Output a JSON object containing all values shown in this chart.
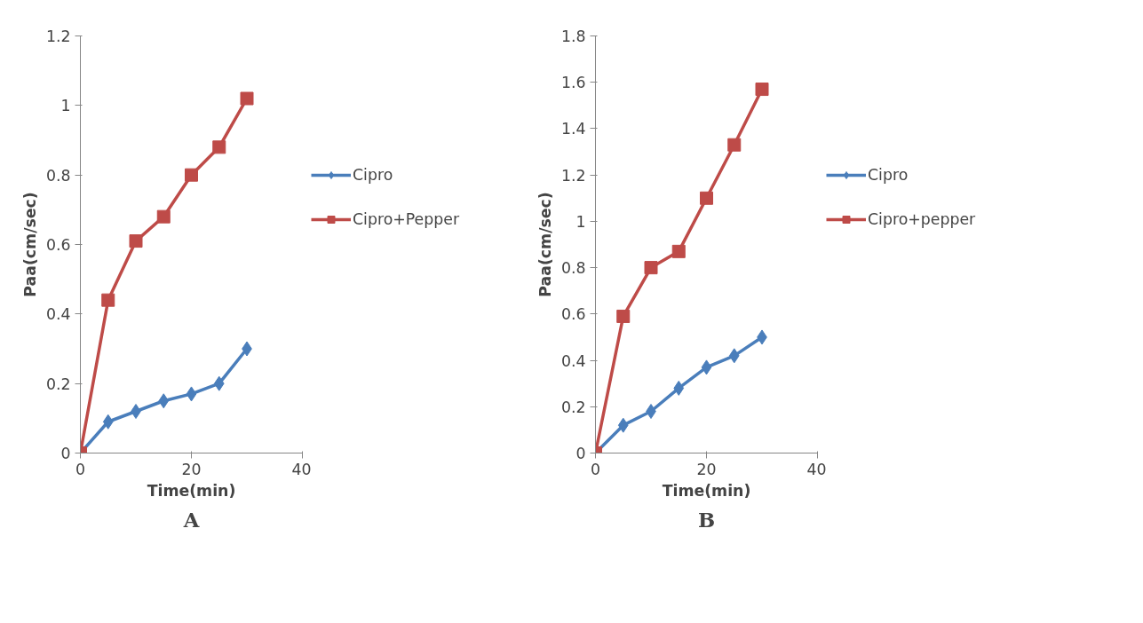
{
  "chart_data": [
    {
      "type": "line",
      "xlabel": "Time(min)",
      "ylabel": "Paa(cm/sec)",
      "x": [
        0,
        5,
        10,
        15,
        20,
        25,
        30
      ],
      "xlim": [
        0,
        40
      ],
      "xticks": [
        0,
        20,
        40
      ],
      "ylim": [
        0,
        1.2
      ],
      "yticks": [
        0,
        0.2,
        0.4,
        0.6,
        0.8,
        1,
        1.2
      ],
      "grid": false,
      "legend": "right",
      "annotations": [
        "A"
      ],
      "series": [
        {
          "name": "Cipro",
          "color": "#4a7ebb",
          "marker": "diamond",
          "values": [
            0,
            0.09,
            0.12,
            0.15,
            0.17,
            0.2,
            0.3
          ]
        },
        {
          "name": "Cipro+Pepper",
          "color": "#be4b48",
          "marker": "square",
          "values": [
            0,
            0.44,
            0.61,
            0.68,
            0.8,
            0.88,
            1.02
          ]
        }
      ]
    },
    {
      "type": "line",
      "xlabel": "Time(min)",
      "ylabel": "Paa(cm/sec)",
      "x": [
        0,
        5,
        10,
        15,
        20,
        25,
        30
      ],
      "xlim": [
        0,
        40
      ],
      "xticks": [
        0,
        20,
        40
      ],
      "ylim": [
        0,
        1.8
      ],
      "yticks": [
        0,
        0.2,
        0.4,
        0.6,
        0.8,
        1,
        1.2,
        1.4,
        1.6,
        1.8
      ],
      "grid": false,
      "legend": "right",
      "annotations": [
        "B"
      ],
      "series": [
        {
          "name": "Cipro",
          "color": "#4a7ebb",
          "marker": "diamond",
          "values": [
            0,
            0.12,
            0.18,
            0.28,
            0.37,
            0.42,
            0.5
          ]
        },
        {
          "name": "Cipro+pepper",
          "color": "#be4b48",
          "marker": "square",
          "values": [
            0,
            0.59,
            0.8,
            0.87,
            1.1,
            1.33,
            1.57
          ]
        }
      ]
    }
  ]
}
